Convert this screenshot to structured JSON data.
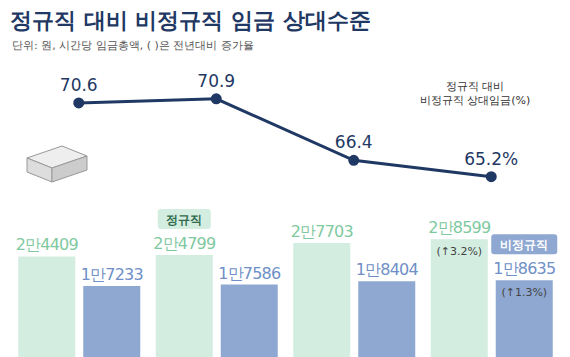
{
  "chart_data": {
    "type": "bar",
    "title": "정규직 대비 비정규직 임금 상대수준",
    "subtitle": "단위: 원, 시간당 임금총액, ( )은 전년대비 증가율",
    "categories": [
      null,
      null,
      null,
      null
    ],
    "series": [
      {
        "name": "정규직",
        "type": "bar",
        "color": "#d3ede0",
        "values": [
          24409,
          24799,
          27703,
          28599
        ],
        "value_labels": [
          "2만4409",
          "2만4799",
          "2만7703",
          "2만8599"
        ],
        "annotations": [
          null,
          null,
          null,
          "(↑3.2%)"
        ]
      },
      {
        "name": "비정규직",
        "type": "bar",
        "color": "#8fa8d2",
        "values": [
          17233,
          17586,
          18404,
          18635
        ],
        "value_labels": [
          "1만7233",
          "1만7586",
          "1만8404",
          "1만8635"
        ],
        "annotations": [
          null,
          null,
          null,
          "(↑1.3%)"
        ]
      },
      {
        "name": "정규직 대비 비정규직 상대임금(%)",
        "type": "line",
        "axis": "y2",
        "color": "#1f3864",
        "marker": "circle",
        "values": [
          70.6,
          70.9,
          66.4,
          65.2
        ],
        "value_labels": [
          "70.6",
          "70.9",
          "66.4",
          "65.2%"
        ]
      }
    ],
    "ylim": [
      0,
      68000
    ],
    "y2lim": [
      52,
      72.5
    ],
    "data_labels": true,
    "tick_labels": false,
    "grid": false
  }
}
